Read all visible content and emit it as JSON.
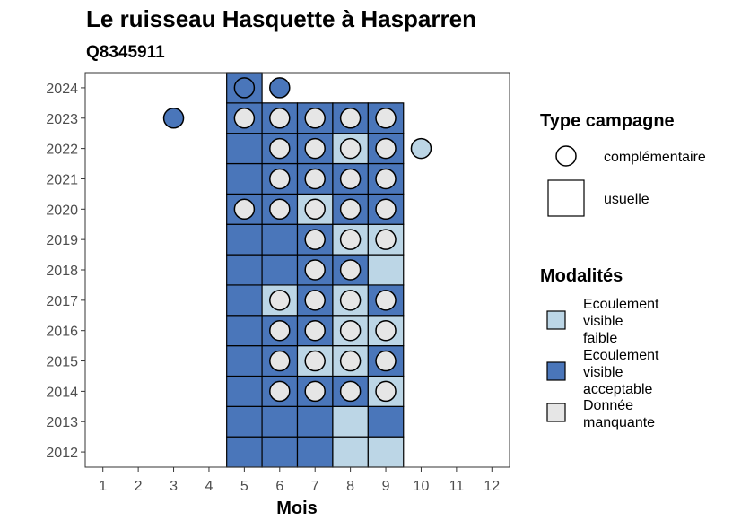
{
  "title": "Le ruisseau Hasquette à Hasparren",
  "subtitle": "Q8345911",
  "colors": {
    "ecoulement_faible": "#bcd6e6",
    "ecoulement_acceptable": "#4a76ba",
    "donnee_manquante": "#e6e6e6",
    "border": "#000000"
  },
  "legend": {
    "type_title": "Type campagne",
    "type_items": [
      {
        "key": "complementaire",
        "label": "complémentaire",
        "shape": "circle"
      },
      {
        "key": "usuelle",
        "label": "usuelle",
        "shape": "square"
      }
    ],
    "modalites_title": "Modalités",
    "modalites_items": [
      {
        "key": "ecoulement_faible",
        "lines": [
          "Ecoulement",
          "visible",
          "faible"
        ]
      },
      {
        "key": "ecoulement_acceptable",
        "lines": [
          "Ecoulement",
          "visible",
          "acceptable"
        ]
      },
      {
        "key": "donnee_manquante",
        "lines": [
          "Donnée",
          "manquante"
        ]
      }
    ]
  },
  "chart_data": {
    "type": "heatmap",
    "title": "Le ruisseau Hasquette à Hasparren",
    "subtitle": "Q8345911",
    "xlabel": "Mois",
    "ylabel": "",
    "x_ticks": [
      1,
      2,
      3,
      4,
      5,
      6,
      7,
      8,
      9,
      10,
      11,
      12
    ],
    "y_ticks": [
      2012,
      2013,
      2014,
      2015,
      2016,
      2017,
      2018,
      2019,
      2020,
      2021,
      2022,
      2023,
      2024
    ],
    "xlim": [
      0.5,
      12.5
    ],
    "ylim": [
      2011.5,
      2024.5
    ],
    "grid": false,
    "usuelle": [
      {
        "year": 2012,
        "month": 5,
        "modalite": "ecoulement_acceptable"
      },
      {
        "year": 2012,
        "month": 6,
        "modalite": "ecoulement_acceptable"
      },
      {
        "year": 2012,
        "month": 7,
        "modalite": "ecoulement_acceptable"
      },
      {
        "year": 2012,
        "month": 8,
        "modalite": "ecoulement_faible"
      },
      {
        "year": 2012,
        "month": 9,
        "modalite": "ecoulement_faible"
      },
      {
        "year": 2013,
        "month": 5,
        "modalite": "ecoulement_acceptable"
      },
      {
        "year": 2013,
        "month": 6,
        "modalite": "ecoulement_acceptable"
      },
      {
        "year": 2013,
        "month": 7,
        "modalite": "ecoulement_acceptable"
      },
      {
        "year": 2013,
        "month": 8,
        "modalite": "ecoulement_faible"
      },
      {
        "year": 2013,
        "month": 9,
        "modalite": "ecoulement_acceptable"
      },
      {
        "year": 2014,
        "month": 5,
        "modalite": "ecoulement_acceptable"
      },
      {
        "year": 2014,
        "month": 6,
        "modalite": "ecoulement_acceptable"
      },
      {
        "year": 2014,
        "month": 7,
        "modalite": "ecoulement_acceptable"
      },
      {
        "year": 2014,
        "month": 8,
        "modalite": "ecoulement_acceptable"
      },
      {
        "year": 2014,
        "month": 9,
        "modalite": "ecoulement_faible"
      },
      {
        "year": 2015,
        "month": 5,
        "modalite": "ecoulement_acceptable"
      },
      {
        "year": 2015,
        "month": 6,
        "modalite": "ecoulement_acceptable"
      },
      {
        "year": 2015,
        "month": 7,
        "modalite": "ecoulement_faible"
      },
      {
        "year": 2015,
        "month": 8,
        "modalite": "ecoulement_faible"
      },
      {
        "year": 2015,
        "month": 9,
        "modalite": "ecoulement_acceptable"
      },
      {
        "year": 2016,
        "month": 5,
        "modalite": "ecoulement_acceptable"
      },
      {
        "year": 2016,
        "month": 6,
        "modalite": "ecoulement_acceptable"
      },
      {
        "year": 2016,
        "month": 7,
        "modalite": "ecoulement_acceptable"
      },
      {
        "year": 2016,
        "month": 8,
        "modalite": "ecoulement_faible"
      },
      {
        "year": 2016,
        "month": 9,
        "modalite": "ecoulement_faible"
      },
      {
        "year": 2017,
        "month": 5,
        "modalite": "ecoulement_acceptable"
      },
      {
        "year": 2017,
        "month": 6,
        "modalite": "ecoulement_faible"
      },
      {
        "year": 2017,
        "month": 7,
        "modalite": "ecoulement_acceptable"
      },
      {
        "year": 2017,
        "month": 8,
        "modalite": "ecoulement_faible"
      },
      {
        "year": 2017,
        "month": 9,
        "modalite": "ecoulement_acceptable"
      },
      {
        "year": 2018,
        "month": 5,
        "modalite": "ecoulement_acceptable"
      },
      {
        "year": 2018,
        "month": 6,
        "modalite": "ecoulement_acceptable"
      },
      {
        "year": 2018,
        "month": 7,
        "modalite": "ecoulement_acceptable"
      },
      {
        "year": 2018,
        "month": 8,
        "modalite": "ecoulement_acceptable"
      },
      {
        "year": 2018,
        "month": 9,
        "modalite": "ecoulement_faible"
      },
      {
        "year": 2019,
        "month": 5,
        "modalite": "ecoulement_acceptable"
      },
      {
        "year": 2019,
        "month": 6,
        "modalite": "ecoulement_acceptable"
      },
      {
        "year": 2019,
        "month": 7,
        "modalite": "ecoulement_acceptable"
      },
      {
        "year": 2019,
        "month": 8,
        "modalite": "ecoulement_faible"
      },
      {
        "year": 2019,
        "month": 9,
        "modalite": "ecoulement_faible"
      },
      {
        "year": 2020,
        "month": 5,
        "modalite": "ecoulement_acceptable"
      },
      {
        "year": 2020,
        "month": 6,
        "modalite": "ecoulement_acceptable"
      },
      {
        "year": 2020,
        "month": 7,
        "modalite": "ecoulement_faible"
      },
      {
        "year": 2020,
        "month": 8,
        "modalite": "ecoulement_acceptable"
      },
      {
        "year": 2020,
        "month": 9,
        "modalite": "ecoulement_acceptable"
      },
      {
        "year": 2021,
        "month": 5,
        "modalite": "ecoulement_acceptable"
      },
      {
        "year": 2021,
        "month": 6,
        "modalite": "ecoulement_acceptable"
      },
      {
        "year": 2021,
        "month": 7,
        "modalite": "ecoulement_acceptable"
      },
      {
        "year": 2021,
        "month": 8,
        "modalite": "ecoulement_acceptable"
      },
      {
        "year": 2021,
        "month": 9,
        "modalite": "ecoulement_acceptable"
      },
      {
        "year": 2022,
        "month": 5,
        "modalite": "ecoulement_acceptable"
      },
      {
        "year": 2022,
        "month": 6,
        "modalite": "ecoulement_acceptable"
      },
      {
        "year": 2022,
        "month": 7,
        "modalite": "ecoulement_acceptable"
      },
      {
        "year": 2022,
        "month": 8,
        "modalite": "ecoulement_faible"
      },
      {
        "year": 2022,
        "month": 9,
        "modalite": "ecoulement_acceptable"
      },
      {
        "year": 2023,
        "month": 5,
        "modalite": "ecoulement_acceptable"
      },
      {
        "year": 2023,
        "month": 6,
        "modalite": "ecoulement_acceptable"
      },
      {
        "year": 2023,
        "month": 7,
        "modalite": "ecoulement_acceptable"
      },
      {
        "year": 2023,
        "month": 8,
        "modalite": "ecoulement_acceptable"
      },
      {
        "year": 2023,
        "month": 9,
        "modalite": "ecoulement_acceptable"
      },
      {
        "year": 2024,
        "month": 5,
        "modalite": "ecoulement_acceptable"
      }
    ],
    "complementaire": [
      {
        "year": 2014,
        "month": 6,
        "modalite": "donnee_manquante"
      },
      {
        "year": 2014,
        "month": 7,
        "modalite": "donnee_manquante"
      },
      {
        "year": 2014,
        "month": 8,
        "modalite": "donnee_manquante"
      },
      {
        "year": 2014,
        "month": 9,
        "modalite": "donnee_manquante"
      },
      {
        "year": 2015,
        "month": 6,
        "modalite": "donnee_manquante"
      },
      {
        "year": 2015,
        "month": 7,
        "modalite": "donnee_manquante"
      },
      {
        "year": 2015,
        "month": 8,
        "modalite": "donnee_manquante"
      },
      {
        "year": 2015,
        "month": 9,
        "modalite": "donnee_manquante"
      },
      {
        "year": 2016,
        "month": 6,
        "modalite": "donnee_manquante"
      },
      {
        "year": 2016,
        "month": 7,
        "modalite": "donnee_manquante"
      },
      {
        "year": 2016,
        "month": 8,
        "modalite": "donnee_manquante"
      },
      {
        "year": 2016,
        "month": 9,
        "modalite": "donnee_manquante"
      },
      {
        "year": 2017,
        "month": 6,
        "modalite": "donnee_manquante"
      },
      {
        "year": 2017,
        "month": 7,
        "modalite": "donnee_manquante"
      },
      {
        "year": 2017,
        "month": 8,
        "modalite": "donnee_manquante"
      },
      {
        "year": 2017,
        "month": 9,
        "modalite": "donnee_manquante"
      },
      {
        "year": 2018,
        "month": 7,
        "modalite": "donnee_manquante"
      },
      {
        "year": 2018,
        "month": 8,
        "modalite": "donnee_manquante"
      },
      {
        "year": 2019,
        "month": 7,
        "modalite": "donnee_manquante"
      },
      {
        "year": 2019,
        "month": 8,
        "modalite": "donnee_manquante"
      },
      {
        "year": 2019,
        "month": 9,
        "modalite": "donnee_manquante"
      },
      {
        "year": 2020,
        "month": 5,
        "modalite": "donnee_manquante"
      },
      {
        "year": 2020,
        "month": 6,
        "modalite": "donnee_manquante"
      },
      {
        "year": 2020,
        "month": 7,
        "modalite": "donnee_manquante"
      },
      {
        "year": 2020,
        "month": 8,
        "modalite": "donnee_manquante"
      },
      {
        "year": 2020,
        "month": 9,
        "modalite": "donnee_manquante"
      },
      {
        "year": 2021,
        "month": 6,
        "modalite": "donnee_manquante"
      },
      {
        "year": 2021,
        "month": 7,
        "modalite": "donnee_manquante"
      },
      {
        "year": 2021,
        "month": 8,
        "modalite": "donnee_manquante"
      },
      {
        "year": 2021,
        "month": 9,
        "modalite": "donnee_manquante"
      },
      {
        "year": 2022,
        "month": 6,
        "modalite": "donnee_manquante"
      },
      {
        "year": 2022,
        "month": 7,
        "modalite": "donnee_manquante"
      },
      {
        "year": 2022,
        "month": 8,
        "modalite": "donnee_manquante"
      },
      {
        "year": 2022,
        "month": 9,
        "modalite": "donnee_manquante"
      },
      {
        "year": 2022,
        "month": 10,
        "modalite": "ecoulement_faible"
      },
      {
        "year": 2023,
        "month": 3,
        "modalite": "ecoulement_acceptable"
      },
      {
        "year": 2023,
        "month": 5,
        "modalite": "donnee_manquante"
      },
      {
        "year": 2023,
        "month": 6,
        "modalite": "donnee_manquante"
      },
      {
        "year": 2023,
        "month": 7,
        "modalite": "donnee_manquante"
      },
      {
        "year": 2023,
        "month": 8,
        "modalite": "donnee_manquante"
      },
      {
        "year": 2023,
        "month": 9,
        "modalite": "donnee_manquante"
      },
      {
        "year": 2024,
        "month": 5,
        "modalite": "ecoulement_acceptable"
      },
      {
        "year": 2024,
        "month": 6,
        "modalite": "ecoulement_acceptable"
      }
    ]
  }
}
